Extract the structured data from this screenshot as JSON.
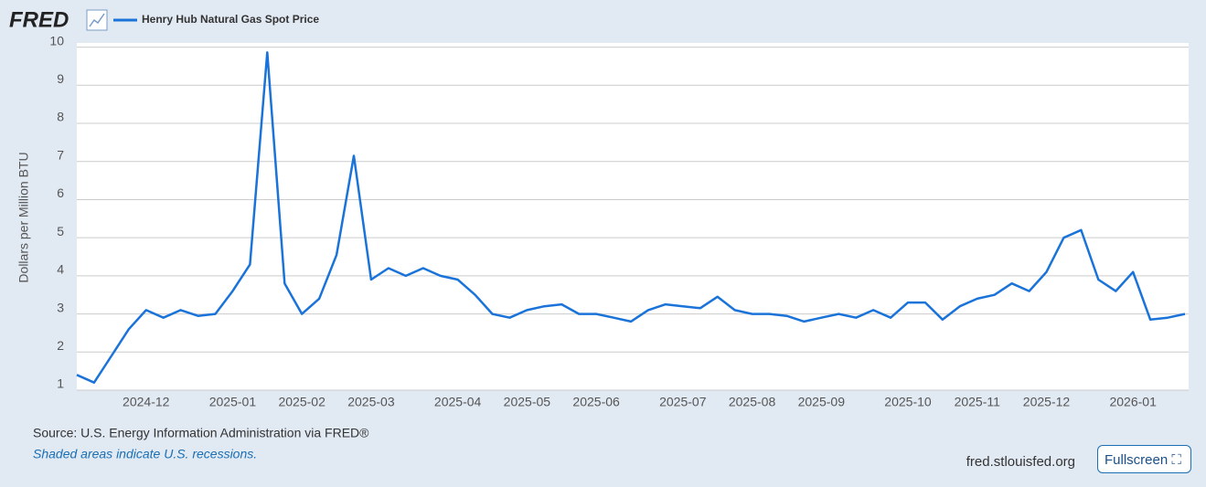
{
  "header": {
    "logo": "FRED"
  },
  "chart_data": {
    "type": "line",
    "y_label": "Dollars per Million BTU",
    "categories": [
      null,
      null,
      null,
      null,
      "2024-12",
      null,
      null,
      null,
      null,
      "2025-01",
      null,
      null,
      null,
      "2025-02",
      null,
      null,
      null,
      "2025-03",
      null,
      null,
      null,
      null,
      "2025-04",
      null,
      null,
      null,
      "2025-05",
      null,
      null,
      null,
      "2025-06",
      null,
      null,
      null,
      null,
      "2025-07",
      null,
      null,
      null,
      "2025-08",
      null,
      null,
      null,
      "2025-09",
      null,
      null,
      null,
      null,
      "2025-10",
      null,
      null,
      null,
      "2025-11",
      null,
      null,
      null,
      "2025-12",
      null,
      null,
      null,
      null,
      "2026-01",
      null,
      null,
      null
    ],
    "series": [
      {
        "name": "Henry Hub Natural Gas Spot Price",
        "color": "#1a73d9",
        "values": [
          1.4,
          1.2,
          1.9,
          2.6,
          3.1,
          2.9,
          3.1,
          2.95,
          3.0,
          3.6,
          4.3,
          9.86,
          3.8,
          3.0,
          3.4,
          4.55,
          7.15,
          3.9,
          4.2,
          4.0,
          4.2,
          4.0,
          3.9,
          3.5,
          3.0,
          2.9,
          3.1,
          3.2,
          3.25,
          3.0,
          3.0,
          2.9,
          2.8,
          3.1,
          3.25,
          3.2,
          3.15,
          3.45,
          3.1,
          3.0,
          3.0,
          2.95,
          2.8,
          2.9,
          3.0,
          2.9,
          3.1,
          2.9,
          3.3,
          3.3,
          2.85,
          3.2,
          3.4,
          3.5,
          3.8,
          3.6,
          4.1,
          5.0,
          5.2,
          3.9,
          3.6,
          4.1,
          2.85,
          2.9,
          3.0
        ]
      }
    ],
    "ylim": [
      1,
      10
    ],
    "yticks": [
      1,
      2,
      3,
      4,
      5,
      6,
      7,
      8,
      9,
      10
    ],
    "grid": true,
    "source": "Source: U.S. Energy Information Administration via FRED®",
    "note": "Shaded areas indicate U.S. recessions."
  },
  "footer": {
    "site": "fred.stlouisfed.org",
    "button": "Fullscreen"
  }
}
